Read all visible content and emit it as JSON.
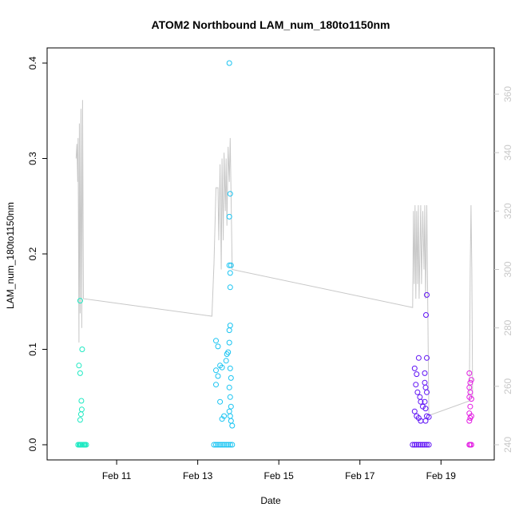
{
  "chart_data": {
    "type": "scatter",
    "title": "ATOM2 Northbound LAM_num_180to1150nm",
    "xlabel": "Date",
    "ylabel": "LAM_num_180to1150nm",
    "x_ticks": [
      "Feb 11",
      "Feb 13",
      "Feb 15",
      "Feb 17",
      "Feb 19"
    ],
    "x_tick_days": [
      11,
      13,
      15,
      17,
      19
    ],
    "xlim_days": [
      9.6,
      19.9
    ],
    "y_ticks": [
      "0.0",
      "0.1",
      "0.2",
      "0.3",
      "0.4"
    ],
    "ylim": [
      0,
      0.4
    ],
    "y2_ticks": [
      "240",
      "260",
      "280",
      "300",
      "320",
      "340",
      "360"
    ],
    "y2lim": [
      240,
      360
    ],
    "grid": false,
    "series": [
      {
        "color": "#1de9c2",
        "points": [
          [
            10.05,
            0
          ],
          [
            10.08,
            0
          ],
          [
            10.1,
            0
          ],
          [
            10.12,
            0
          ],
          [
            10.15,
            0
          ],
          [
            10.18,
            0
          ],
          [
            10.2,
            0
          ],
          [
            10.22,
            0
          ],
          [
            10.25,
            0
          ],
          [
            10.07,
            0.083
          ],
          [
            10.1,
            0.151
          ],
          [
            10.1,
            0.075
          ],
          [
            10.12,
            0.032
          ],
          [
            10.1,
            0.026
          ],
          [
            10.13,
            0.046
          ],
          [
            10.14,
            0.037
          ],
          [
            10.15,
            0.1
          ]
        ]
      },
      {
        "color": "#19c4f2",
        "points": [
          [
            13.4,
            0
          ],
          [
            13.45,
            0
          ],
          [
            13.5,
            0
          ],
          [
            13.55,
            0
          ],
          [
            13.6,
            0
          ],
          [
            13.65,
            0
          ],
          [
            13.7,
            0
          ],
          [
            13.75,
            0
          ],
          [
            13.8,
            0
          ],
          [
            13.85,
            0
          ],
          [
            13.45,
            0.109
          ],
          [
            13.5,
            0.103
          ],
          [
            13.45,
            0.078
          ],
          [
            13.5,
            0.072
          ],
          [
            13.55,
            0.083
          ],
          [
            13.6,
            0.081
          ],
          [
            13.55,
            0.045
          ],
          [
            13.45,
            0.063
          ],
          [
            13.6,
            0.027
          ],
          [
            13.65,
            0.03
          ],
          [
            13.7,
            0.088
          ],
          [
            13.72,
            0.095
          ],
          [
            13.75,
            0.097
          ],
          [
            13.78,
            0.12
          ],
          [
            13.8,
            0.125
          ],
          [
            13.78,
            0.107
          ],
          [
            13.8,
            0.08
          ],
          [
            13.82,
            0.07
          ],
          [
            13.78,
            0.06
          ],
          [
            13.8,
            0.05
          ],
          [
            13.82,
            0.04
          ],
          [
            13.78,
            0.035
          ],
          [
            13.8,
            0.03
          ],
          [
            13.82,
            0.025
          ],
          [
            13.85,
            0.02
          ],
          [
            13.8,
            0.18
          ],
          [
            13.82,
            0.188
          ],
          [
            13.78,
            0.188
          ],
          [
            13.8,
            0.165
          ],
          [
            13.78,
            0.239
          ],
          [
            13.8,
            0.263
          ],
          [
            13.78,
            0.4
          ]
        ]
      },
      {
        "color": "#5f12f5",
        "points": [
          [
            18.3,
            0
          ],
          [
            18.35,
            0
          ],
          [
            18.4,
            0
          ],
          [
            18.45,
            0
          ],
          [
            18.5,
            0
          ],
          [
            18.55,
            0
          ],
          [
            18.6,
            0
          ],
          [
            18.65,
            0
          ],
          [
            18.7,
            0
          ],
          [
            18.35,
            0.08
          ],
          [
            18.4,
            0.074
          ],
          [
            18.45,
            0.091
          ],
          [
            18.38,
            0.063
          ],
          [
            18.42,
            0.055
          ],
          [
            18.48,
            0.05
          ],
          [
            18.5,
            0.045
          ],
          [
            18.55,
            0.04
          ],
          [
            18.35,
            0.035
          ],
          [
            18.4,
            0.03
          ],
          [
            18.45,
            0.028
          ],
          [
            18.5,
            0.025
          ],
          [
            18.6,
            0.075
          ],
          [
            18.62,
            0.06
          ],
          [
            18.65,
            0.055
          ],
          [
            18.6,
            0.045
          ],
          [
            18.62,
            0.038
          ],
          [
            18.65,
            0.03
          ],
          [
            18.7,
            0.029
          ],
          [
            18.65,
            0.157
          ],
          [
            18.63,
            0.136
          ],
          [
            18.65,
            0.091
          ],
          [
            18.6,
            0.065
          ],
          [
            18.62,
            0.025
          ]
        ]
      },
      {
        "color": "#e31de3",
        "points": [
          [
            19.7,
            0
          ],
          [
            19.72,
            0
          ],
          [
            19.75,
            0
          ],
          [
            19.7,
            0.075
          ],
          [
            19.72,
            0.065
          ],
          [
            19.7,
            0.06
          ],
          [
            19.75,
            0.068
          ],
          [
            19.72,
            0.055
          ],
          [
            19.7,
            0.05
          ],
          [
            19.75,
            0.048
          ],
          [
            19.72,
            0.04
          ],
          [
            19.7,
            0.033
          ],
          [
            19.75,
            0.03
          ],
          [
            19.72,
            0.028
          ],
          [
            19.7,
            0.025
          ]
        ]
      }
    ],
    "secondary_line": {
      "color": "#c8c8c8",
      "axis": "right",
      "points": [
        [
          10.0,
          338
        ],
        [
          10.02,
          343
        ],
        [
          10.04,
          330
        ],
        [
          10.05,
          345
        ],
        [
          10.07,
          275
        ],
        [
          10.08,
          350
        ],
        [
          10.1,
          285
        ],
        [
          10.12,
          355
        ],
        [
          10.14,
          280
        ],
        [
          10.16,
          358
        ],
        [
          10.18,
          290
        ],
        [
          13.35,
          284
        ],
        [
          13.4,
          302
        ],
        [
          13.45,
          328
        ],
        [
          13.5,
          328
        ],
        [
          13.52,
          310
        ],
        [
          13.55,
          336
        ],
        [
          13.58,
          300
        ],
        [
          13.6,
          338
        ],
        [
          13.63,
          310
        ],
        [
          13.65,
          340
        ],
        [
          13.68,
          320
        ],
        [
          13.7,
          338
        ],
        [
          13.72,
          315
        ],
        [
          13.75,
          342
        ],
        [
          13.78,
          330
        ],
        [
          13.8,
          345
        ],
        [
          13.85,
          300
        ],
        [
          18.3,
          287
        ],
        [
          18.32,
          320
        ],
        [
          18.34,
          295
        ],
        [
          18.36,
          322
        ],
        [
          18.38,
          290
        ],
        [
          18.4,
          320
        ],
        [
          18.42,
          295
        ],
        [
          18.44,
          322
        ],
        [
          18.46,
          290
        ],
        [
          18.5,
          322
        ],
        [
          18.52,
          295
        ],
        [
          18.55,
          320
        ],
        [
          18.58,
          300
        ],
        [
          18.6,
          322
        ],
        [
          18.62,
          290
        ],
        [
          18.65,
          322
        ],
        [
          18.7,
          250
        ],
        [
          19.7,
          255
        ],
        [
          19.72,
          300
        ],
        [
          19.74,
          322
        ],
        [
          19.76,
          300
        ],
        [
          19.78,
          256
        ]
      ]
    }
  }
}
